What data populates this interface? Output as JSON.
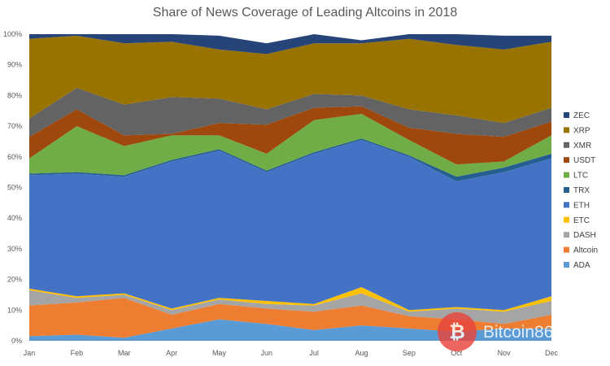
{
  "chart_data": {
    "type": "area",
    "stacked": true,
    "title": "Share of News Coverage of Leading Altcoins in 2018",
    "categories": [
      "Jan",
      "Feb",
      "Mar",
      "Apr",
      "May",
      "Jun",
      "Jul",
      "Aug",
      "Sep",
      "Oct",
      "Nov",
      "Dec"
    ],
    "y_ticks": [
      "0%",
      "10%",
      "20%",
      "30%",
      "40%",
      "50%",
      "60%",
      "70%",
      "80%",
      "90%",
      "100%"
    ],
    "ylim": [
      0,
      100
    ],
    "grid": false,
    "legend_position": "right",
    "series": [
      {
        "name": "ADA",
        "color": "#5b9bd5",
        "values": [
          1.5,
          2,
          1,
          4,
          7,
          5.5,
          3.5,
          5,
          4,
          3,
          4,
          4
        ]
      },
      {
        "name": "Altcoin",
        "color": "#ed7d31",
        "values": [
          10,
          10.5,
          13,
          4.5,
          5,
          5,
          6,
          6.5,
          4,
          4,
          1.5,
          4.5
        ]
      },
      {
        "name": "DASH",
        "color": "#a5a5a5",
        "values": [
          5,
          1.5,
          1,
          1.5,
          1.5,
          1.5,
          2,
          4,
          1.5,
          3.5,
          4,
          4.5
        ]
      },
      {
        "name": "ETC",
        "color": "#ffc000",
        "values": [
          0.5,
          0.5,
          0.5,
          0.5,
          0.5,
          1,
          0.5,
          2,
          0.5,
          0.5,
          0.5,
          1.5
        ]
      },
      {
        "name": "ETH",
        "color": "#4472c4",
        "values": [
          37,
          40,
          38,
          48,
          48,
          42,
          49,
          48,
          50,
          41,
          45,
          45
        ]
      },
      {
        "name": "TRX",
        "color": "#255e91",
        "values": [
          0.5,
          0.5,
          0.5,
          0.5,
          0.5,
          0.5,
          0.5,
          0.5,
          0.5,
          1.5,
          1.5,
          1.5
        ]
      },
      {
        "name": "LTC",
        "color": "#70ad47",
        "values": [
          5,
          15,
          9.5,
          8,
          4.5,
          5.5,
          10.5,
          8,
          5,
          4,
          2,
          6
        ]
      },
      {
        "name": "USDT",
        "color": "#9e480e",
        "values": [
          7,
          5.5,
          3.5,
          0.5,
          4,
          9.5,
          4,
          2.5,
          4,
          10,
          8,
          4.5
        ]
      },
      {
        "name": "XMR",
        "color": "#636363",
        "values": [
          6,
          7,
          10,
          12,
          8,
          5,
          4.5,
          3.5,
          6,
          6,
          4.5,
          4.5
        ]
      },
      {
        "name": "XRP",
        "color": "#997300",
        "values": [
          26,
          17,
          20,
          18,
          16,
          18,
          16.5,
          17,
          23,
          23,
          24,
          21.5
        ]
      },
      {
        "name": "ZEC",
        "color": "#264478",
        "values": [
          1.5,
          0.5,
          3,
          2.5,
          4.5,
          3.5,
          3,
          1,
          1.5,
          3.5,
          4.5,
          2
        ]
      }
    ]
  },
  "watermark": {
    "text": "Bitcoin86",
    "icon": "bitcoin-icon",
    "icon_glyph": "₿",
    "color": "#e8453c"
  }
}
